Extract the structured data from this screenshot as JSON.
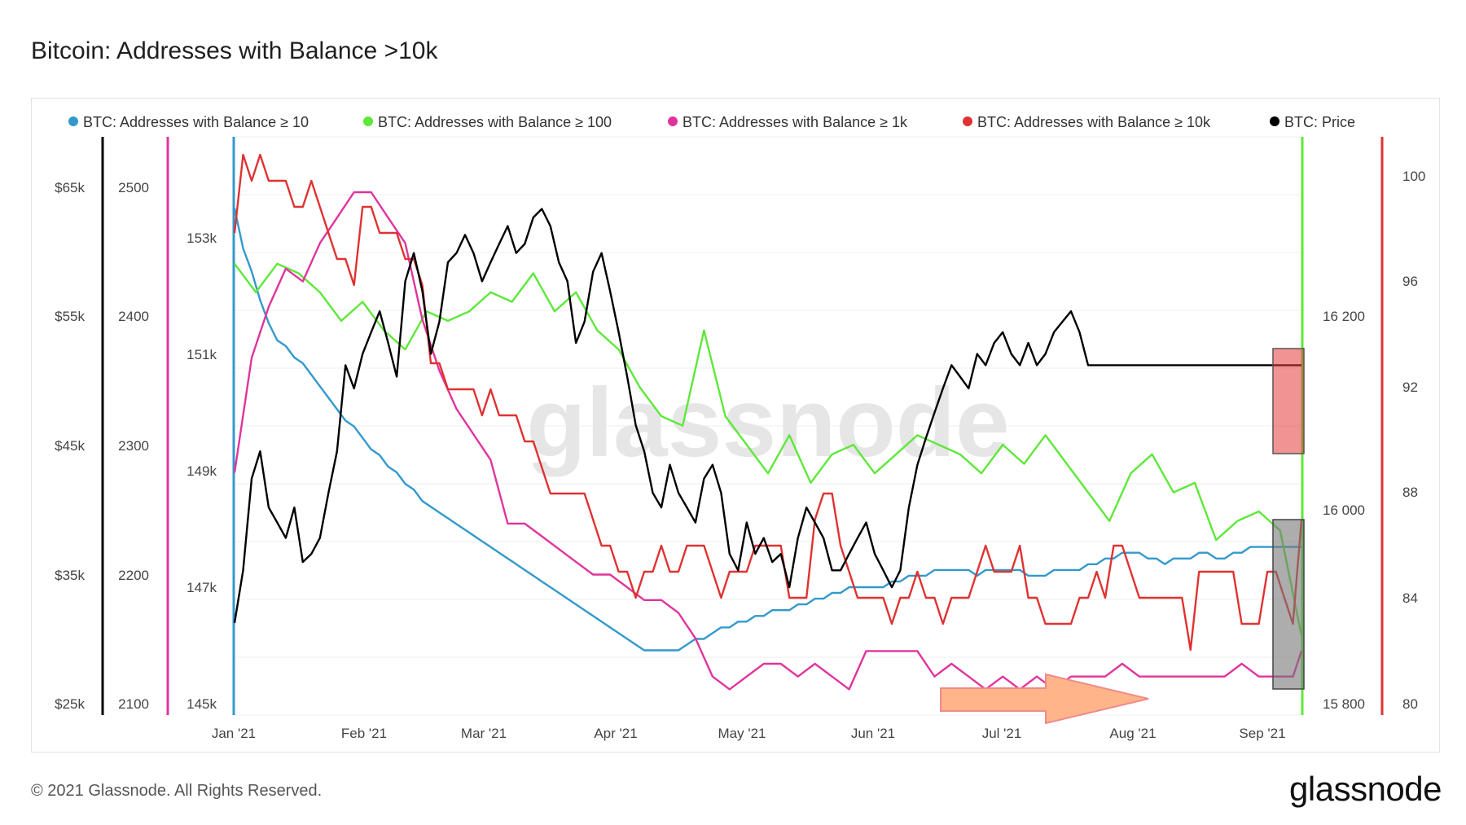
{
  "title": "Bitcoin: Addresses with Balance >10k",
  "footer": "© 2021 Glassnode. All Rights Reserved.",
  "brand": "glassnode",
  "watermark": "glassnode",
  "chart_data": {
    "type": "line",
    "title": "Bitcoin: Addresses with Balance >10k",
    "x_ticks": [
      "Jan '21",
      "Feb '21",
      "Mar '21",
      "Apr '21",
      "May '21",
      "Jun '21",
      "Jul '21",
      "Aug '21",
      "Sep '21"
    ],
    "axes": {
      "price": {
        "ticks": [
          "$25k",
          "$35k",
          "$45k",
          "$55k",
          "$65k"
        ],
        "range": [
          25000,
          70000
        ],
        "color": "#000000",
        "scale": "log"
      },
      "ge10": {
        "ticks": [
          "2100",
          "2200",
          "2300",
          "2400",
          "2500"
        ],
        "range": [
          2100,
          2540
        ],
        "color": "#e0349c"
      },
      "ge1k": {
        "ticks": [
          "145k",
          "147k",
          "149k",
          "151k",
          "153k"
        ],
        "range": [
          145000,
          155000
        ],
        "color": "#3399cc"
      },
      "ge100": {
        "ticks": [
          "15 800",
          "16 000",
          "16 200"
        ],
        "range": [
          15800,
          16400
        ],
        "color": "#5ee83a"
      },
      "ge10k": {
        "ticks": [
          "80",
          "84",
          "88",
          "92",
          "96",
          "100"
        ],
        "range": [
          80,
          102
        ],
        "color": "#e03232"
      }
    },
    "series": [
      {
        "name": "BTC: Addresses with Balance ≥ 10",
        "color": "#3399cc",
        "axis": "ge1k",
        "x": [
          0,
          2,
          4,
          6,
          8,
          10,
          12,
          14,
          16,
          18,
          20,
          22,
          24,
          26,
          28,
          30,
          32,
          34,
          36,
          38,
          40,
          42,
          44,
          46,
          48,
          50,
          52,
          54,
          56,
          58,
          60,
          62,
          64,
          66,
          68,
          70,
          72,
          74,
          76,
          78,
          80,
          82,
          84,
          86,
          88,
          90,
          92,
          94,
          96,
          98,
          100,
          102,
          104,
          106,
          108,
          110,
          112,
          114,
          116,
          118,
          120,
          122,
          124,
          126,
          128,
          130,
          132,
          134,
          136,
          138,
          140,
          142,
          144,
          146,
          148,
          150,
          152,
          154,
          156,
          158,
          160,
          162,
          164,
          166,
          168,
          170,
          172,
          174,
          176,
          178,
          180,
          182,
          184,
          186,
          188,
          190,
          192,
          194,
          196,
          198,
          200,
          202,
          204,
          206,
          208,
          210,
          212,
          214,
          216,
          218,
          220,
          222,
          224,
          226,
          228,
          230,
          232,
          234,
          236,
          238,
          240,
          242,
          244,
          246,
          248,
          250
        ],
        "values": [
          153600,
          152900,
          152500,
          152000,
          151600,
          151300,
          151200,
          151000,
          150900,
          150700,
          150500,
          150300,
          150100,
          149900,
          149800,
          149600,
          149400,
          149300,
          149100,
          149000,
          148800,
          148700,
          148500,
          148400,
          148300,
          148200,
          148100,
          148000,
          147900,
          147800,
          147700,
          147600,
          147500,
          147400,
          147300,
          147200,
          147100,
          147000,
          146900,
          146800,
          146700,
          146600,
          146500,
          146400,
          146300,
          146200,
          146100,
          146000,
          145900,
          145900,
          145900,
          145900,
          145900,
          146000,
          146100,
          146100,
          146200,
          146300,
          146300,
          146400,
          146400,
          146500,
          146500,
          146600,
          146600,
          146600,
          146700,
          146700,
          146800,
          146800,
          146900,
          146900,
          147000,
          147000,
          147000,
          147000,
          147000,
          147100,
          147100,
          147200,
          147200,
          147200,
          147300,
          147300,
          147300,
          147300,
          147300,
          147200,
          147300,
          147300,
          147300,
          147300,
          147300,
          147200,
          147200,
          147200,
          147300,
          147300,
          147300,
          147300,
          147400,
          147400,
          147500,
          147500,
          147600,
          147600,
          147600,
          147500,
          147500,
          147400,
          147500,
          147500,
          147500,
          147600,
          147600,
          147500,
          147500,
          147600,
          147600,
          147700,
          147700,
          147700,
          147700,
          147700,
          147700,
          147700
        ]
      },
      {
        "name": "BTC: Addresses with Balance ≥ 100",
        "color": "#5ee83a",
        "axis": "ge100",
        "x": [
          0,
          5,
          10,
          15,
          20,
          25,
          30,
          35,
          40,
          45,
          50,
          55,
          60,
          65,
          70,
          75,
          80,
          85,
          90,
          95,
          100,
          105,
          110,
          115,
          120,
          125,
          130,
          135,
          140,
          145,
          150,
          155,
          160,
          165,
          170,
          175,
          180,
          185,
          190,
          195,
          200,
          205,
          210,
          215,
          220,
          225,
          230,
          235,
          240,
          245,
          250
        ],
        "values": [
          16260,
          16230,
          16260,
          16250,
          16230,
          16200,
          16220,
          16190,
          16170,
          16210,
          16200,
          16210,
          16230,
          16220,
          16250,
          16210,
          16230,
          16190,
          16170,
          16130,
          16100,
          16090,
          16190,
          16100,
          16070,
          16040,
          16080,
          16030,
          16060,
          16070,
          16040,
          16060,
          16080,
          16070,
          16060,
          16040,
          16070,
          16050,
          16080,
          16050,
          16020,
          15990,
          16040,
          16060,
          16020,
          16030,
          15970,
          15990,
          16000,
          15980,
          15870
        ]
      },
      {
        "name": "BTC: Addresses with Balance ≥ 1k",
        "color": "#e0349c",
        "axis": "ge10",
        "x": [
          0,
          4,
          8,
          12,
          16,
          20,
          24,
          28,
          32,
          36,
          40,
          44,
          48,
          52,
          56,
          60,
          64,
          68,
          72,
          76,
          80,
          84,
          88,
          92,
          96,
          100,
          104,
          108,
          112,
          116,
          120,
          124,
          128,
          132,
          136,
          140,
          144,
          148,
          152,
          156,
          160,
          164,
          168,
          172,
          176,
          180,
          184,
          188,
          192,
          196,
          200,
          204,
          208,
          212,
          216,
          220,
          224,
          228,
          232,
          236,
          240,
          244,
          248,
          250
        ],
        "values": [
          2280,
          2370,
          2410,
          2440,
          2430,
          2460,
          2480,
          2500,
          2500,
          2480,
          2460,
          2400,
          2360,
          2330,
          2310,
          2290,
          2240,
          2240,
          2230,
          2220,
          2210,
          2200,
          2200,
          2190,
          2180,
          2180,
          2170,
          2150,
          2120,
          2110,
          2120,
          2130,
          2130,
          2120,
          2130,
          2120,
          2110,
          2140,
          2140,
          2140,
          2140,
          2120,
          2130,
          2120,
          2110,
          2120,
          2110,
          2120,
          2110,
          2120,
          2120,
          2120,
          2130,
          2120,
          2120,
          2120,
          2120,
          2120,
          2120,
          2130,
          2120,
          2120,
          2120,
          2140
        ]
      },
      {
        "name": "BTC: Addresses with Balance ≥ 10k",
        "color": "#e03232",
        "axis": "ge10k",
        "x": [
          0,
          2,
          4,
          6,
          8,
          10,
          12,
          14,
          16,
          18,
          20,
          22,
          24,
          26,
          28,
          30,
          32,
          34,
          36,
          38,
          40,
          42,
          44,
          46,
          48,
          50,
          52,
          54,
          56,
          58,
          60,
          62,
          64,
          66,
          68,
          70,
          72,
          74,
          76,
          78,
          80,
          82,
          84,
          86,
          88,
          90,
          92,
          94,
          96,
          98,
          100,
          102,
          104,
          106,
          108,
          110,
          112,
          114,
          116,
          118,
          120,
          122,
          124,
          126,
          128,
          130,
          132,
          134,
          136,
          138,
          140,
          142,
          144,
          146,
          148,
          150,
          152,
          154,
          156,
          158,
          160,
          162,
          164,
          166,
          168,
          170,
          172,
          174,
          176,
          178,
          180,
          182,
          184,
          186,
          188,
          190,
          192,
          194,
          196,
          198,
          200,
          202,
          204,
          206,
          208,
          210,
          212,
          214,
          216,
          218,
          220,
          222,
          224,
          226,
          228,
          230,
          232,
          234,
          236,
          238,
          240,
          242,
          244,
          246,
          248,
          250
        ],
        "values": [
          98,
          101,
          100,
          101,
          100,
          100,
          100,
          99,
          99,
          100,
          99,
          98,
          97,
          97,
          96,
          99,
          99,
          98,
          98,
          98,
          97,
          97,
          96,
          93,
          93,
          92,
          92,
          92,
          92,
          91,
          92,
          91,
          91,
          91,
          90,
          90,
          89,
          88,
          88,
          88,
          88,
          88,
          87,
          86,
          86,
          85,
          85,
          84,
          85,
          85,
          86,
          85,
          85,
          86,
          86,
          86,
          85,
          84,
          85,
          85,
          85,
          86,
          86,
          86,
          86,
          84,
          84,
          84,
          87,
          88,
          88,
          86,
          85,
          84,
          84,
          84,
          84,
          83,
          84,
          84,
          85,
          84,
          84,
          83,
          84,
          84,
          84,
          85,
          86,
          85,
          85,
          85,
          86,
          84,
          84,
          83,
          83,
          83,
          83,
          84,
          84,
          85,
          84,
          86,
          86,
          85,
          84,
          84,
          84,
          84,
          84,
          84,
          82,
          85,
          85,
          85,
          85,
          85,
          83,
          83,
          83,
          85,
          85,
          84,
          83,
          87
        ]
      },
      {
        "name": "BTC: Price",
        "color": "#000000",
        "axis": "price",
        "x": [
          0,
          2,
          4,
          6,
          8,
          10,
          12,
          14,
          16,
          18,
          20,
          22,
          24,
          26,
          28,
          30,
          32,
          34,
          36,
          38,
          40,
          42,
          44,
          46,
          48,
          50,
          52,
          54,
          56,
          58,
          60,
          62,
          64,
          66,
          68,
          70,
          72,
          74,
          76,
          78,
          80,
          82,
          84,
          86,
          88,
          90,
          92,
          94,
          96,
          98,
          100,
          102,
          104,
          106,
          108,
          110,
          112,
          114,
          116,
          118,
          120,
          122,
          124,
          126,
          128,
          130,
          132,
          134,
          136,
          138,
          140,
          142,
          144,
          146,
          148,
          150,
          152,
          154,
          156,
          158,
          160,
          162,
          164,
          166,
          168,
          170,
          172,
          174,
          176,
          178,
          180,
          182,
          184,
          186,
          188,
          190,
          192,
          194,
          196,
          198,
          200,
          202,
          204,
          206,
          208,
          210,
          212,
          214,
          216,
          218,
          220,
          222,
          224,
          226,
          228,
          230,
          232,
          234,
          236,
          238,
          240,
          242,
          244,
          246,
          248,
          250
        ],
        "values": [
          29000,
          32000,
          38000,
          40000,
          36000,
          35000,
          34000,
          36000,
          32500,
          33000,
          34000,
          37000,
          40000,
          47000,
          45000,
          48000,
          50000,
          52000,
          49000,
          46000,
          55000,
          58000,
          54000,
          48000,
          51000,
          57000,
          58000,
          60000,
          58000,
          55000,
          57000,
          59000,
          61000,
          58000,
          59000,
          62000,
          63000,
          61000,
          57000,
          55000,
          49000,
          51000,
          56000,
          58000,
          54000,
          50000,
          46000,
          42000,
          40000,
          37000,
          36000,
          39000,
          37000,
          36000,
          35000,
          38000,
          39000,
          37000,
          33000,
          32000,
          35000,
          33000,
          34000,
          32500,
          33000,
          31000,
          34000,
          36000,
          35000,
          34000,
          32000,
          32000,
          33000,
          34000,
          35000,
          33000,
          32000,
          31000,
          32000,
          36000,
          39000,
          41000,
          43000,
          45000,
          47000,
          46000,
          45000,
          48000,
          47000,
          49000,
          50000,
          48000,
          47000,
          49000,
          47000,
          48000,
          50000,
          51000,
          52000,
          50000,
          47000,
          47000,
          47000,
          47000,
          47000,
          47000,
          47000,
          47000,
          47000,
          47000,
          47000,
          47000,
          47000,
          47000,
          47000,
          47000,
          47000,
          47000,
          47000,
          47000,
          47000,
          47000,
          47000,
          47000,
          47000,
          47000
        ]
      }
    ],
    "legend_position": "top",
    "grid": true
  },
  "legend": [
    {
      "label": "BTC: Addresses with Balance ≥ 10",
      "color": "#3399cc"
    },
    {
      "label": "BTC: Addresses with Balance ≥ 100",
      "color": "#5ee83a"
    },
    {
      "label": "BTC: Addresses with Balance ≥ 1k",
      "color": "#e0349c"
    },
    {
      "label": "BTC: Addresses with Balance ≥ 10k",
      "color": "#e03232"
    },
    {
      "label": "BTC: Price",
      "color": "#000000"
    }
  ],
  "annotations": {
    "arrow_color": "#ffb48a",
    "red_box_color": "#e83a3a",
    "gray_box_color": "#777777"
  }
}
